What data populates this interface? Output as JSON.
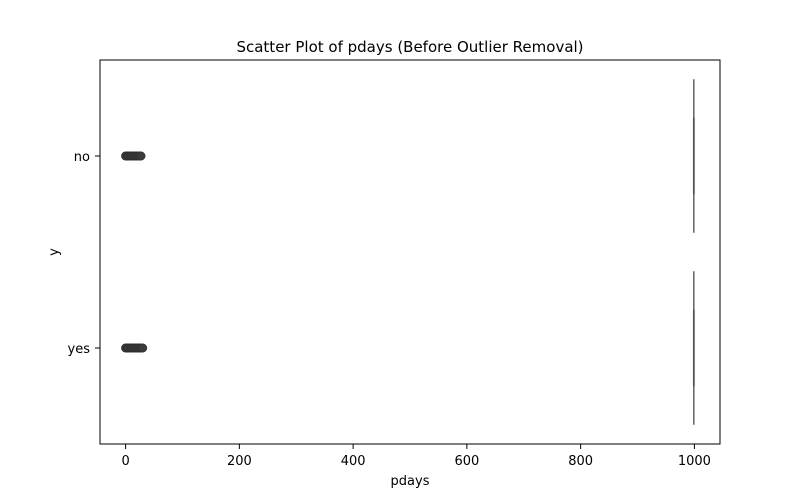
{
  "chart_data": {
    "type": "scatter",
    "title": "Scatter Plot of pdays (Before Outlier Removal)",
    "xlabel": "pdays",
    "ylabel": "y",
    "xlim": [
      -45,
      1045
    ],
    "x_ticks": [
      0,
      200,
      400,
      600,
      800,
      1000
    ],
    "categories": [
      "no",
      "yes"
    ],
    "grid": false,
    "legend": "none",
    "marker_color": "#3b3b3b",
    "series": [
      {
        "category": "no",
        "clusters": [
          {
            "x_start": 0,
            "x_end": 27
          }
        ],
        "outliers": [
          {
            "x": 999,
            "spread": [
              -0.4,
              0.4
            ]
          }
        ]
      },
      {
        "category": "yes",
        "clusters": [
          {
            "x_start": 0,
            "x_end": 30
          }
        ],
        "outliers": [
          {
            "x": 999,
            "spread": [
              -0.4,
              0.4
            ]
          }
        ]
      }
    ]
  }
}
